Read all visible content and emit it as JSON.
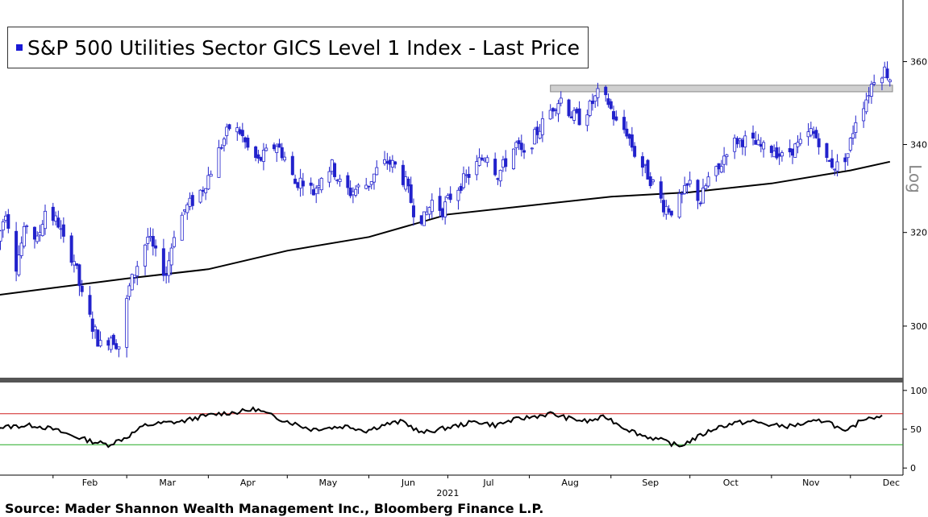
{
  "legend": {
    "label": "S&P 500 Utilities Sector GICS Level 1 Index - Last Price",
    "swatch_color": "#1a1ad6"
  },
  "source": "Source: Mader Shannon Wealth Management Inc., Bloomberg Finance L.P.",
  "chart_data": [
    {
      "type": "candlestick",
      "scale_label": "Log",
      "yscale": "log",
      "ylim": [
        290,
        375
      ],
      "yticks": [
        300,
        320,
        340,
        360
      ],
      "x_months": [
        "Feb",
        "Mar",
        "Apr",
        "May",
        "Jun",
        "Jul",
        "Aug",
        "Sep",
        "Oct",
        "Nov",
        "Dec"
      ],
      "year_label": "2021",
      "candle_color": "#2222cc",
      "moving_average_color": "#000000",
      "price_path": [
        [
          "2021-01-11",
          318
        ],
        [
          "2021-01-14",
          325
        ],
        [
          "2021-01-18",
          313
        ],
        [
          "2021-01-22",
          322
        ],
        [
          "2021-01-26",
          318
        ],
        [
          "2021-01-29",
          325
        ],
        [
          "2021-02-03",
          322
        ],
        [
          "2021-02-05",
          318
        ],
        [
          "2021-02-09",
          314
        ],
        [
          "2021-02-12",
          306
        ],
        [
          "2021-02-16",
          300
        ],
        [
          "2021-02-19",
          296
        ],
        [
          "2021-02-23",
          298
        ],
        [
          "2021-02-26",
          296
        ],
        [
          "2021-03-02",
          308
        ],
        [
          "2021-03-05",
          313
        ],
        [
          "2021-03-09",
          319
        ],
        [
          "2021-03-12",
          315
        ],
        [
          "2021-03-16",
          311
        ],
        [
          "2021-03-19",
          320
        ],
        [
          "2021-03-23",
          325
        ],
        [
          "2021-03-26",
          327
        ],
        [
          "2021-03-30",
          330
        ],
        [
          "2021-04-02",
          334
        ],
        [
          "2021-04-06",
          340
        ],
        [
          "2021-04-09",
          344
        ],
        [
          "2021-04-13",
          343
        ],
        [
          "2021-04-16",
          339
        ],
        [
          "2021-04-20",
          336
        ],
        [
          "2021-04-23",
          338
        ],
        [
          "2021-04-27",
          340
        ],
        [
          "2021-04-30",
          337
        ],
        [
          "2021-05-04",
          331
        ],
        [
          "2021-05-07",
          332
        ],
        [
          "2021-05-11",
          329
        ],
        [
          "2021-05-14",
          333
        ],
        [
          "2021-05-18",
          335
        ],
        [
          "2021-05-21",
          331
        ],
        [
          "2021-05-25",
          329
        ],
        [
          "2021-05-28",
          330
        ],
        [
          "2021-06-01",
          331
        ],
        [
          "2021-06-04",
          334
        ],
        [
          "2021-06-08",
          336
        ],
        [
          "2021-06-11",
          335
        ],
        [
          "2021-06-15",
          331
        ],
        [
          "2021-06-18",
          325
        ],
        [
          "2021-06-22",
          323
        ],
        [
          "2021-06-25",
          327
        ],
        [
          "2021-06-29",
          325
        ],
        [
          "2021-07-02",
          328
        ],
        [
          "2021-07-06",
          331
        ],
        [
          "2021-07-09",
          333
        ],
        [
          "2021-07-13",
          336
        ],
        [
          "2021-07-16",
          338
        ],
        [
          "2021-07-20",
          333
        ],
        [
          "2021-07-23",
          336
        ],
        [
          "2021-07-27",
          340
        ],
        [
          "2021-07-30",
          337
        ],
        [
          "2021-08-03",
          342
        ],
        [
          "2021-08-06",
          345
        ],
        [
          "2021-08-10",
          349
        ],
        [
          "2021-08-13",
          351
        ],
        [
          "2021-08-17",
          347
        ],
        [
          "2021-08-20",
          346
        ],
        [
          "2021-08-24",
          349
        ],
        [
          "2021-08-27",
          352
        ],
        [
          "2021-08-31",
          350
        ],
        [
          "2021-09-03",
          345
        ],
        [
          "2021-09-07",
          343
        ],
        [
          "2021-09-10",
          338
        ],
        [
          "2021-09-14",
          334
        ],
        [
          "2021-09-17",
          331
        ],
        [
          "2021-09-21",
          326
        ],
        [
          "2021-09-24",
          325
        ],
        [
          "2021-09-28",
          328
        ],
        [
          "2021-10-01",
          331
        ],
        [
          "2021-10-05",
          327
        ],
        [
          "2021-10-08",
          332
        ],
        [
          "2021-10-12",
          334
        ],
        [
          "2021-10-15",
          339
        ],
        [
          "2021-10-19",
          341
        ],
        [
          "2021-10-22",
          341
        ],
        [
          "2021-10-26",
          340
        ],
        [
          "2021-10-29",
          339
        ],
        [
          "2021-11-02",
          339
        ],
        [
          "2021-11-05",
          337
        ],
        [
          "2021-11-09",
          339
        ],
        [
          "2021-11-12",
          340
        ],
        [
          "2021-11-16",
          343
        ],
        [
          "2021-11-19",
          341
        ],
        [
          "2021-11-22",
          336
        ],
        [
          "2021-11-26",
          335
        ],
        [
          "2021-11-30",
          338
        ],
        [
          "2021-12-03",
          346
        ],
        [
          "2021-12-07",
          351
        ],
        [
          "2021-12-10",
          356
        ],
        [
          "2021-12-14",
          358
        ],
        [
          "2021-12-16",
          356
        ]
      ],
      "moving_average": [
        [
          "2021-01-04",
          306
        ],
        [
          "2021-02-01",
          308
        ],
        [
          "2021-03-01",
          310
        ],
        [
          "2021-04-01",
          312
        ],
        [
          "2021-05-01",
          316
        ],
        [
          "2021-06-01",
          319
        ],
        [
          "2021-07-01",
          324
        ],
        [
          "2021-08-01",
          326
        ],
        [
          "2021-09-01",
          328
        ],
        [
          "2021-10-01",
          329
        ],
        [
          "2021-11-01",
          331
        ],
        [
          "2021-12-01",
          334
        ],
        [
          "2021-12-16",
          336
        ]
      ],
      "resistance_band": {
        "x_start": "2021-08-09",
        "x_end": "2021-12-17",
        "low": 352.6,
        "high": 354.2,
        "color": "#d0d0d0"
      }
    },
    {
      "type": "line",
      "ylim": [
        -5,
        105
      ],
      "yticks": [
        0,
        50,
        100
      ],
      "upper_line": {
        "value": 70,
        "color": "#d02020"
      },
      "lower_line": {
        "value": 30,
        "color": "#22aa22"
      },
      "line_color": "#000000",
      "x": [
        "2021-01-04",
        "2021-01-11",
        "2021-01-18",
        "2021-01-25",
        "2021-02-01",
        "2021-02-08",
        "2021-02-15",
        "2021-02-22",
        "2021-03-01",
        "2021-03-08",
        "2021-03-15",
        "2021-03-22",
        "2021-03-29",
        "2021-04-05",
        "2021-04-12",
        "2021-04-19",
        "2021-04-26",
        "2021-05-03",
        "2021-05-10",
        "2021-05-17",
        "2021-05-24",
        "2021-05-31",
        "2021-06-07",
        "2021-06-14",
        "2021-06-21",
        "2021-06-28",
        "2021-07-05",
        "2021-07-12",
        "2021-07-19",
        "2021-07-26",
        "2021-08-02",
        "2021-08-09",
        "2021-08-16",
        "2021-08-23",
        "2021-08-30",
        "2021-09-06",
        "2021-09-13",
        "2021-09-20",
        "2021-09-27",
        "2021-10-04",
        "2021-10-11",
        "2021-10-18",
        "2021-10-25",
        "2021-11-01",
        "2021-11-08",
        "2021-11-15",
        "2021-11-22",
        "2021-11-29",
        "2021-12-06",
        "2021-12-13"
      ],
      "values": [
        62,
        52,
        54,
        55,
        50,
        42,
        35,
        30,
        40,
        55,
        58,
        60,
        66,
        70,
        72,
        76,
        66,
        58,
        50,
        52,
        54,
        48,
        56,
        60,
        45,
        50,
        55,
        60,
        55,
        62,
        66,
        70,
        64,
        60,
        66,
        52,
        42,
        36,
        28,
        40,
        52,
        58,
        60,
        55,
        54,
        58,
        62,
        45,
        64,
        68
      ]
    }
  ]
}
